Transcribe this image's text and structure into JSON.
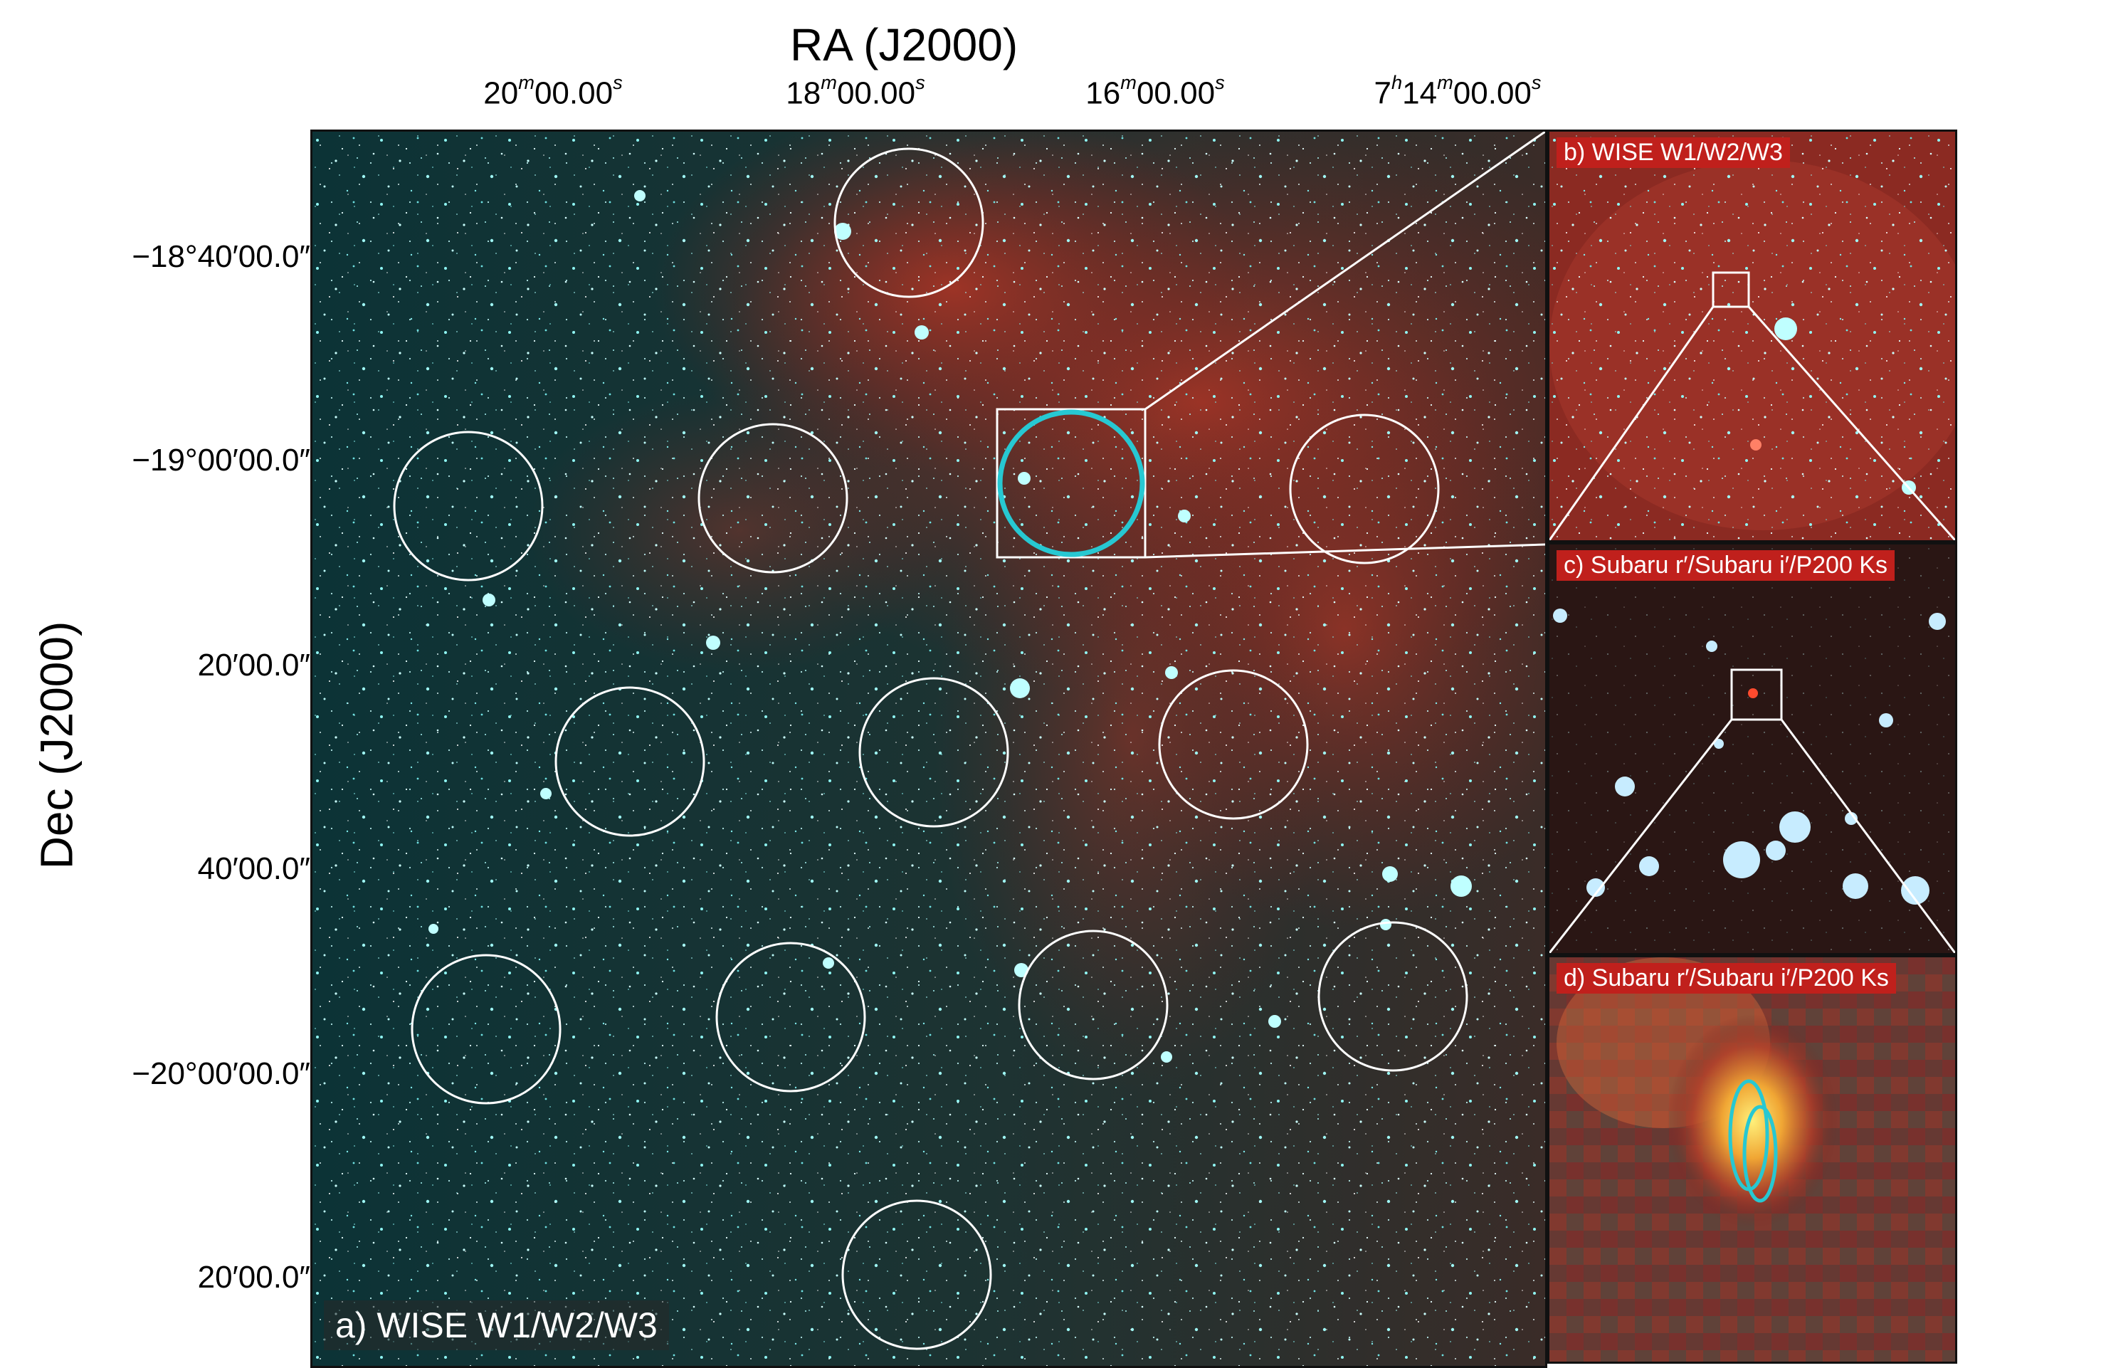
{
  "axes": {
    "x_title": "RA (J2000)",
    "y_title": "Dec (J2000)",
    "ra_ticks": [
      {
        "base": "20",
        "unit": "m",
        "rest": "00.00",
        "unit2": "s"
      },
      {
        "base": "18",
        "unit": "m",
        "rest": "00.00",
        "unit2": "s"
      },
      {
        "base": "16",
        "unit": "m",
        "rest": "00.00",
        "unit2": "s"
      },
      {
        "base": "7",
        "unit": "h",
        "rest": "14",
        "unit3": "m",
        "rest2": "00.00",
        "unit2": "s"
      }
    ],
    "dec_ticks": [
      "−18°40′00.0″",
      "−19°00′00.0″",
      "20′00.0″",
      "40′00.0″",
      "−20°00′00.0″",
      "20′00.0″"
    ]
  },
  "panels": {
    "a": {
      "label": "a) WISE W1/W2/W3"
    },
    "b": {
      "label": "b) WISE W1/W2/W3"
    },
    "c": {
      "label": "c) Subaru r′/Subaru i′/P200 Ks"
    },
    "d": {
      "label": "d) Subaru r′/Subaru i′/P200 Ks"
    }
  },
  "colors": {
    "circle": "#ffffff",
    "highlight_circle": "#27c8d2",
    "label_bg": "#c0201c",
    "sky_cyan": "#0d3a3c",
    "nebula_red": "#8a2a22"
  }
}
